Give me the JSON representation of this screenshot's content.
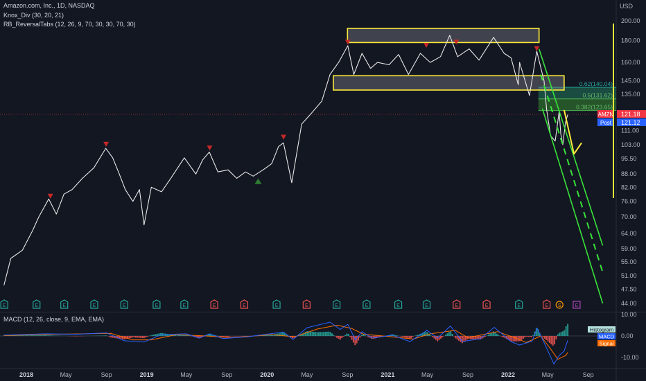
{
  "legend": {
    "title": "Amazon.com, Inc., 1D, NASDAQ",
    "ind1": "Knox_Div (30, 20, 21)",
    "ind2": "RB_ReversalTabs (12, 26, 9, 70, 30, 30, 70, 30)",
    "macd": "MACD (12, 26, close, 9, EMA, EMA)"
  },
  "currency": "USD",
  "chart_data": {
    "type": "line",
    "y_scale": "log",
    "ylim": [
      42,
      205
    ],
    "price_ticks": [
      200.0,
      180.0,
      160.0,
      145.0,
      135.0,
      121.0,
      111.0,
      103.0,
      95.5,
      88.0,
      82.0,
      76.0,
      70.0,
      64.0,
      59.0,
      55.0,
      51.0,
      47.5,
      44.0
    ],
    "price_tick_labels": [
      "200.00",
      "180.00",
      "160.00",
      "145.00",
      "135.00",
      "121.00",
      "111.00",
      "103.00",
      "95.50",
      "88.00",
      "82.00",
      "76.00",
      "70.00",
      "64.00",
      "59.00",
      "55.00",
      "51.00",
      "47.50",
      "44.00"
    ],
    "x_ticks": [
      {
        "label": "2018",
        "date": "2018-01-01",
        "bold": true
      },
      {
        "label": "May",
        "date": "2018-05-01"
      },
      {
        "label": "Sep",
        "date": "2018-09-01"
      },
      {
        "label": "2019",
        "date": "2019-01-01",
        "bold": true
      },
      {
        "label": "May",
        "date": "2019-05-01"
      },
      {
        "label": "Sep",
        "date": "2019-09-01"
      },
      {
        "label": "2020",
        "date": "2020-01-01",
        "bold": true
      },
      {
        "label": "May",
        "date": "2020-05-01"
      },
      {
        "label": "Sep",
        "date": "2020-09-01"
      },
      {
        "label": "2021",
        "date": "2021-01-01",
        "bold": true
      },
      {
        "label": "May",
        "date": "2021-05-01"
      },
      {
        "label": "Sep",
        "date": "2021-09-01"
      },
      {
        "label": "2022",
        "date": "2022-01-01",
        "bold": true
      },
      {
        "label": "May",
        "date": "2022-05-01"
      },
      {
        "label": "Sep",
        "date": "2022-09-01"
      }
    ],
    "series": [
      {
        "points": [
          [
            "2017-10-25",
            48.5
          ],
          [
            "2017-11-15",
            56
          ],
          [
            "2017-12-20",
            58.5
          ],
          [
            "2018-01-20",
            65
          ],
          [
            "2018-02-08",
            70
          ],
          [
            "2018-03-10",
            77
          ],
          [
            "2018-04-02",
            71
          ],
          [
            "2018-04-25",
            79
          ],
          [
            "2018-05-20",
            81
          ],
          [
            "2018-06-20",
            86
          ],
          [
            "2018-07-25",
            91
          ],
          [
            "2018-08-30",
            101
          ],
          [
            "2018-09-20",
            96
          ],
          [
            "2018-10-10",
            88
          ],
          [
            "2018-10-28",
            81
          ],
          [
            "2018-11-20",
            76
          ],
          [
            "2018-12-10",
            81
          ],
          [
            "2018-12-24",
            67
          ],
          [
            "2019-01-15",
            82
          ],
          [
            "2019-02-15",
            80
          ],
          [
            "2019-03-15",
            86
          ],
          [
            "2019-04-25",
            96
          ],
          [
            "2019-05-30",
            88
          ],
          [
            "2019-06-20",
            95
          ],
          [
            "2019-07-10",
            99
          ],
          [
            "2019-08-05",
            89
          ],
          [
            "2019-09-05",
            90
          ],
          [
            "2019-10-01",
            86
          ],
          [
            "2019-10-28",
            89
          ],
          [
            "2019-11-20",
            87
          ],
          [
            "2019-12-20",
            90
          ],
          [
            "2020-01-15",
            93
          ],
          [
            "2020-02-05",
            102
          ],
          [
            "2020-02-20",
            104
          ],
          [
            "2020-03-16",
            84
          ],
          [
            "2020-04-15",
            115
          ],
          [
            "2020-05-15",
            122
          ],
          [
            "2020-06-15",
            130
          ],
          [
            "2020-07-10",
            150
          ],
          [
            "2020-08-05",
            160
          ],
          [
            "2020-09-02",
            175
          ],
          [
            "2020-09-20",
            150
          ],
          [
            "2020-10-15",
            168
          ],
          [
            "2020-11-10",
            155
          ],
          [
            "2020-12-01",
            160
          ],
          [
            "2021-01-05",
            158
          ],
          [
            "2021-02-03",
            167
          ],
          [
            "2021-03-05",
            150
          ],
          [
            "2021-04-10",
            168
          ],
          [
            "2021-05-10",
            160
          ],
          [
            "2021-06-10",
            165
          ],
          [
            "2021-07-08",
            185
          ],
          [
            "2021-08-01",
            165
          ],
          [
            "2021-09-05",
            172
          ],
          [
            "2021-10-05",
            162
          ],
          [
            "2021-11-18",
            183
          ],
          [
            "2021-12-20",
            168
          ],
          [
            "2022-01-10",
            164
          ],
          [
            "2022-02-01",
            142
          ],
          [
            "2022-02-05",
            160
          ],
          [
            "2022-03-07",
            134
          ],
          [
            "2022-03-29",
            170
          ],
          [
            "2022-04-20",
            145
          ],
          [
            "2022-04-28",
            124
          ],
          [
            "2022-05-10",
            108
          ],
          [
            "2022-05-24",
            105
          ],
          [
            "2022-06-05",
            123
          ],
          [
            "2022-06-10",
            109
          ],
          [
            "2022-06-16",
            103
          ],
          [
            "2022-06-24",
            116
          ],
          [
            "2022-07-01",
            121
          ]
        ]
      }
    ],
    "current_price": {
      "label": "AMZN",
      "value": 121.18,
      "text": "121.18"
    },
    "post_price": {
      "label": "Post",
      "value": 121.12,
      "text": "121.12"
    },
    "fib_levels": [
      {
        "label": "0.62(140.04)",
        "value": 140.04
      },
      {
        "label": "0.5(131.62)",
        "value": 131.62
      },
      {
        "label": "0.382(123.65)",
        "value": 123.65
      }
    ],
    "boxes": [
      {
        "x1": "2020-09-01",
        "x2": "2022-04-05",
        "y1": 178,
        "y2": 192
      },
      {
        "x1": "2020-07-20",
        "x2": "2022-06-20",
        "y1": 138,
        "y2": 149
      }
    ],
    "channel": {
      "upper": [
        [
          "2022-04-05",
          172
        ],
        [
          "2022-10-15",
          60
        ]
      ],
      "middle": [
        [
          "2022-04-10",
          150
        ],
        [
          "2022-10-15",
          52
        ]
      ],
      "lower": [
        [
          "2022-04-15",
          125
        ],
        [
          "2022-10-15",
          44
        ]
      ]
    },
    "projection_arrow": [
      [
        "2022-06-20",
        124
      ],
      [
        "2022-07-20",
        98
      ],
      [
        "2022-08-12",
        104
      ]
    ],
    "sell_markers": [
      [
        "2018-03-15",
        78
      ],
      [
        "2018-08-31",
        103
      ],
      [
        "2019-07-11",
        101
      ],
      [
        "2020-02-20",
        107
      ],
      [
        "2020-09-02",
        178
      ],
      [
        "2021-04-28",
        175
      ],
      [
        "2021-07-28",
        178
      ],
      [
        "2022-03-29",
        172
      ]
    ],
    "buy_markers": [
      [
        "2019-12-05",
        85
      ]
    ],
    "events": [
      {
        "date": "2017-10-26",
        "letter": "E",
        "type": "pos"
      },
      {
        "date": "2018-02-01",
        "letter": "E",
        "type": "pos"
      },
      {
        "date": "2018-04-26",
        "letter": "E",
        "type": "pos"
      },
      {
        "date": "2018-07-26",
        "letter": "E",
        "type": "pos"
      },
      {
        "date": "2018-10-25",
        "letter": "E",
        "type": "pos"
      },
      {
        "date": "2019-01-31",
        "letter": "E",
        "type": "pos"
      },
      {
        "date": "2019-04-25",
        "letter": "E",
        "type": "pos"
      },
      {
        "date": "2019-07-25",
        "letter": "E",
        "type": "neg"
      },
      {
        "date": "2019-10-24",
        "letter": "E",
        "type": "neg"
      },
      {
        "date": "2020-01-30",
        "letter": "E",
        "type": "pos"
      },
      {
        "date": "2020-04-30",
        "letter": "E",
        "type": "neg"
      },
      {
        "date": "2020-07-30",
        "letter": "E",
        "type": "pos"
      },
      {
        "date": "2020-10-29",
        "letter": "E",
        "type": "pos"
      },
      {
        "date": "2021-02-02",
        "letter": "E",
        "type": "pos"
      },
      {
        "date": "2021-04-29",
        "letter": "E",
        "type": "pos"
      },
      {
        "date": "2021-07-29",
        "letter": "E",
        "type": "neg"
      },
      {
        "date": "2021-10-28",
        "letter": "E",
        "type": "neg"
      },
      {
        "date": "2022-02-03",
        "letter": "E",
        "type": "pos"
      },
      {
        "date": "2022-04-28",
        "letter": "E",
        "type": "neg"
      },
      {
        "date": "2022-06-06",
        "letter": "S",
        "type": "split"
      },
      {
        "date": "2022-07-28",
        "letter": "E",
        "type": "future"
      }
    ],
    "macd": {
      "ylim": [
        -14,
        12
      ],
      "ticks": [
        10.0,
        0.0,
        -10.0
      ],
      "tick_labels": [
        "10.00",
        "0.00",
        "-10.00"
      ],
      "legend": [
        "Histogram",
        "MACD",
        "Signal"
      ],
      "colors": {
        "histogram": "#26a69a",
        "macd": "#2962ff",
        "signal": "#ff6d00"
      },
      "macd_points": [
        [
          "2017-10-25",
          0.4
        ],
        [
          "2018-03-01",
          1.0
        ],
        [
          "2018-06-01",
          0.8
        ],
        [
          "2018-09-01",
          1.4
        ],
        [
          "2018-10-25",
          -2.2
        ],
        [
          "2018-12-24",
          -2.8
        ],
        [
          "2019-02-15",
          0.6
        ],
        [
          "2019-05-01",
          1.0
        ],
        [
          "2019-06-10",
          -1.0
        ],
        [
          "2019-07-10",
          1.0
        ],
        [
          "2019-08-20",
          -1.2
        ],
        [
          "2019-11-01",
          -0.4
        ],
        [
          "2020-02-20",
          1.8
        ],
        [
          "2020-03-20",
          -1.6
        ],
        [
          "2020-05-01",
          3.8
        ],
        [
          "2020-07-10",
          6.4
        ],
        [
          "2020-08-10",
          3.0
        ],
        [
          "2020-09-02",
          5.4
        ],
        [
          "2020-09-25",
          -1.8
        ],
        [
          "2020-10-15",
          2.0
        ],
        [
          "2020-11-15",
          -1.0
        ],
        [
          "2021-01-15",
          0.4
        ],
        [
          "2021-03-10",
          -2.6
        ],
        [
          "2021-04-30",
          2.6
        ],
        [
          "2021-06-01",
          -1.0
        ],
        [
          "2021-07-10",
          4.6
        ],
        [
          "2021-08-15",
          -2.6
        ],
        [
          "2021-10-10",
          -1.2
        ],
        [
          "2021-11-20",
          4.0
        ],
        [
          "2022-01-10",
          -2.6
        ],
        [
          "2022-02-05",
          -4.2
        ],
        [
          "2022-03-15",
          -2.4
        ],
        [
          "2022-03-30",
          3.6
        ],
        [
          "2022-04-25",
          -4.6
        ],
        [
          "2022-05-20",
          -13.0
        ],
        [
          "2022-06-05",
          -9.0
        ],
        [
          "2022-06-20",
          -7.0
        ],
        [
          "2022-07-01",
          -2.0
        ]
      ],
      "signal_points": [
        [
          "2017-10-25",
          0.2
        ],
        [
          "2018-04-01",
          0.8
        ],
        [
          "2018-09-15",
          1.2
        ],
        [
          "2018-11-20",
          -1.8
        ],
        [
          "2019-01-15",
          -1.8
        ],
        [
          "2019-04-01",
          0.6
        ],
        [
          "2019-07-01",
          0.0
        ],
        [
          "2019-09-15",
          -0.8
        ],
        [
          "2020-01-15",
          0.6
        ],
        [
          "2020-03-25",
          -0.4
        ],
        [
          "2020-06-01",
          3.2
        ],
        [
          "2020-08-01",
          5.0
        ],
        [
          "2020-09-15",
          3.4
        ],
        [
          "2020-10-20",
          0.8
        ],
        [
          "2021-01-01",
          -0.2
        ],
        [
          "2021-03-20",
          -1.4
        ],
        [
          "2021-05-10",
          1.0
        ],
        [
          "2021-07-25",
          2.6
        ],
        [
          "2021-09-01",
          -0.8
        ],
        [
          "2021-11-30",
          2.0
        ],
        [
          "2022-01-25",
          -1.0
        ],
        [
          "2022-02-25",
          -3.0
        ],
        [
          "2022-04-10",
          0.0
        ],
        [
          "2022-05-10",
          -6.0
        ],
        [
          "2022-06-01",
          -10.8
        ],
        [
          "2022-06-25",
          -9.0
        ],
        [
          "2022-07-01",
          -7.6
        ]
      ]
    }
  }
}
